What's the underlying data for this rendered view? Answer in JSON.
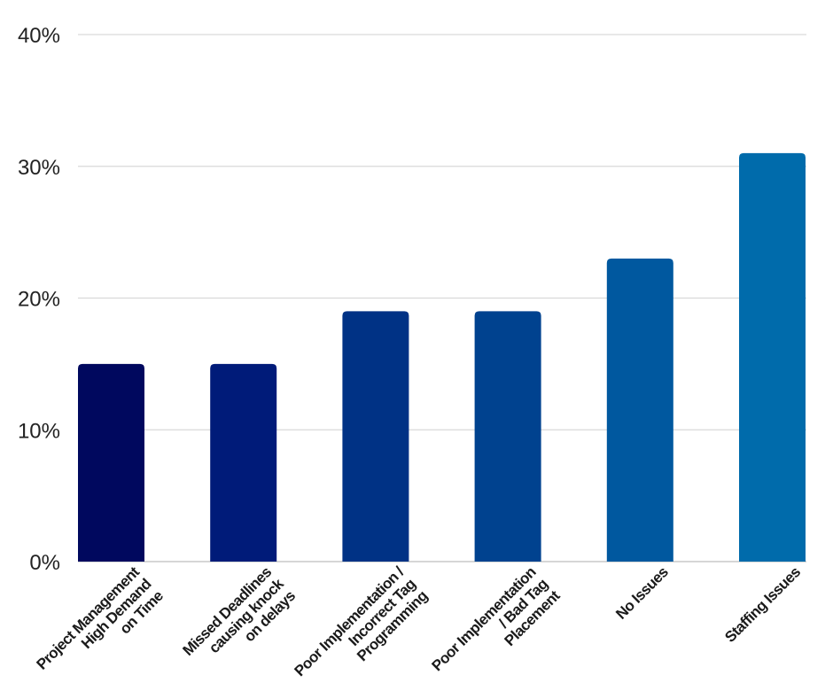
{
  "chart_data": {
    "type": "bar",
    "title": "",
    "xlabel": "",
    "ylabel": "",
    "categories": [
      [
        "Project Management",
        "High Demand",
        "on Time"
      ],
      [
        "Missed Deadlines",
        "causing knock",
        "on delays"
      ],
      [
        "Poor Implementation /",
        "Incorrect Tag",
        "Programming"
      ],
      [
        "Poor Implementation",
        "/ Bad Tag",
        "Placement"
      ],
      [
        "No Issues"
      ],
      [
        "Staffing Issues"
      ]
    ],
    "values": [
      15,
      15,
      19,
      19,
      23,
      31
    ],
    "ylim": [
      0,
      40
    ],
    "yticks": [
      0,
      10,
      20,
      30,
      40
    ],
    "ytick_labels": [
      "0%",
      "10%",
      "20%",
      "30%",
      "40%"
    ],
    "grid": true,
    "legend": "none",
    "colors": [
      "#00085e",
      "#001b79",
      "#003285",
      "#00428f",
      "#00589f",
      "#006bab"
    ]
  }
}
